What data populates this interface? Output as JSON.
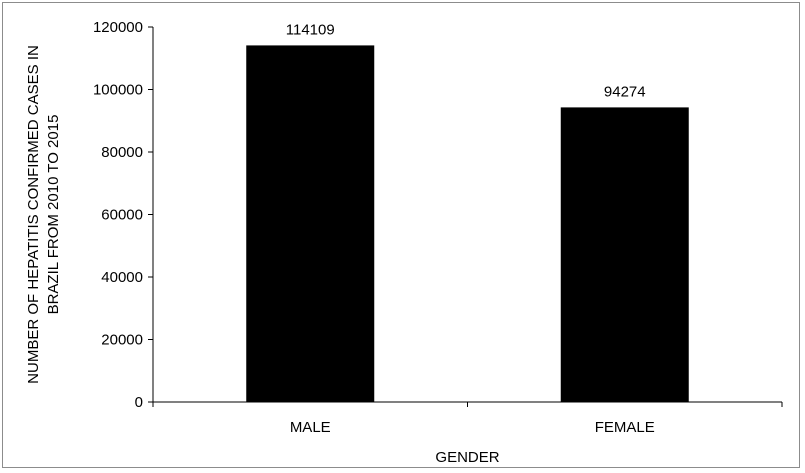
{
  "chart_data": {
    "type": "bar",
    "categories": [
      "MALE",
      "FEMALE"
    ],
    "values": [
      114109,
      94274
    ],
    "data_labels": [
      "114109",
      "94274"
    ],
    "title": "",
    "xlabel": "GENDER",
    "ylabel_lines": [
      "NUMBER OF HEPATITIS CONFIRMED CASES IN",
      "BRAZIL FROM 2010 TO 2015"
    ],
    "ylim": [
      0,
      120000
    ],
    "yticks": [
      0,
      20000,
      40000,
      60000,
      80000,
      100000,
      120000
    ],
    "ytick_labels": [
      "0",
      "20000",
      "40000",
      "60000",
      "80000",
      "100000",
      "120000"
    ],
    "grid": false,
    "legend": "none",
    "bar_color": "#000000"
  }
}
